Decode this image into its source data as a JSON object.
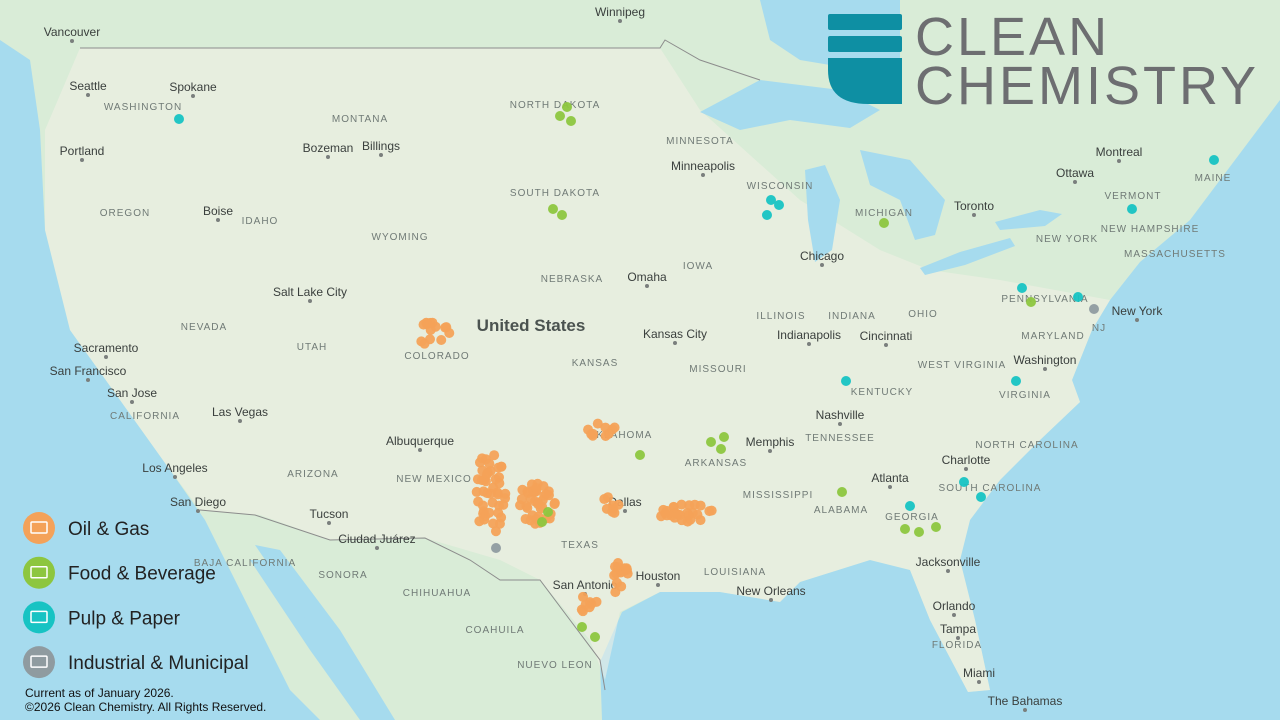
{
  "logo": {
    "line1": "CLEAN",
    "line2": "CHEMISTRY"
  },
  "places": [
    "Winnipeg",
    "Vancouver",
    "Seattle",
    "Spokane",
    "WASHINGTON",
    "Portland",
    "OREGON",
    "Boise",
    "IDAHO",
    "MONTANA",
    "Bozeman",
    "Billings",
    "NORTH DAKOTA",
    "SOUTH DAKOTA",
    "WYOMING",
    "MINNESOTA",
    "Minneapolis",
    "WISCONSIN",
    "MICHIGAN",
    "Toronto",
    "Ottawa",
    "Montreal",
    "VERMONT",
    "NEW HAMPSHIRE",
    "MAINE",
    "MASSACHUSETTS",
    "NEW YORK",
    "Chicago",
    "IOWA",
    "NEBRASKA",
    "Omaha",
    "Salt Lake City",
    "NEVADA",
    "UTAH",
    "COLORADO",
    "United States",
    "Kansas City",
    "KANSAS",
    "MISSOURI",
    "ILLINOIS",
    "INDIANA",
    "Indianapolis",
    "Cincinnati",
    "OHIO",
    "PENNSYLVANIA",
    "New York",
    "NJ",
    "MARYLAND",
    "Washington",
    "WEST VIRGINIA",
    "VIRGINIA",
    "KENTUCKY",
    "Sacramento",
    "San Francisco",
    "San Jose",
    "CALIFORNIA",
    "Las Vegas",
    "Nashville",
    "TENNESSEE",
    "Memphis",
    "NORTH CAROLINA",
    "Charlotte",
    "SOUTH CAROLINA",
    "Albuquerque",
    "OKLAHOMA",
    "ARKANSAS",
    "NEW MEXICO",
    "ARIZONA",
    "Los Angeles",
    "Atlanta",
    "MISSISSIPPI",
    "ALABAMA",
    "GEORGIA",
    "San Diego",
    "Tucson",
    "Dallas",
    "Ciudad Juárez",
    "TEXAS",
    "Jacksonville",
    "LOUISIANA",
    "BAJA CALIFORNIA",
    "SONORA",
    "Houston",
    "San Antonio",
    "New Orleans",
    "CHIHUAHUA",
    "Orlando",
    "Tampa",
    "FLORIDA",
    "COAHUILA",
    "NUEVO LEON",
    "Miami",
    "The Bahamas"
  ],
  "legend": [
    {
      "label": "Oil & Gas",
      "color": "#f4a259"
    },
    {
      "label": "Food & Beverage",
      "color": "#8dc63f"
    },
    {
      "label": "Pulp & Paper",
      "color": "#17c3c3"
    },
    {
      "label": "Industrial & Municipal",
      "color": "#8f9ba0"
    }
  ],
  "footer": [
    "Current as of January 2026.",
    "©2026 Clean Chemistry. All Rights Reserved."
  ]
}
